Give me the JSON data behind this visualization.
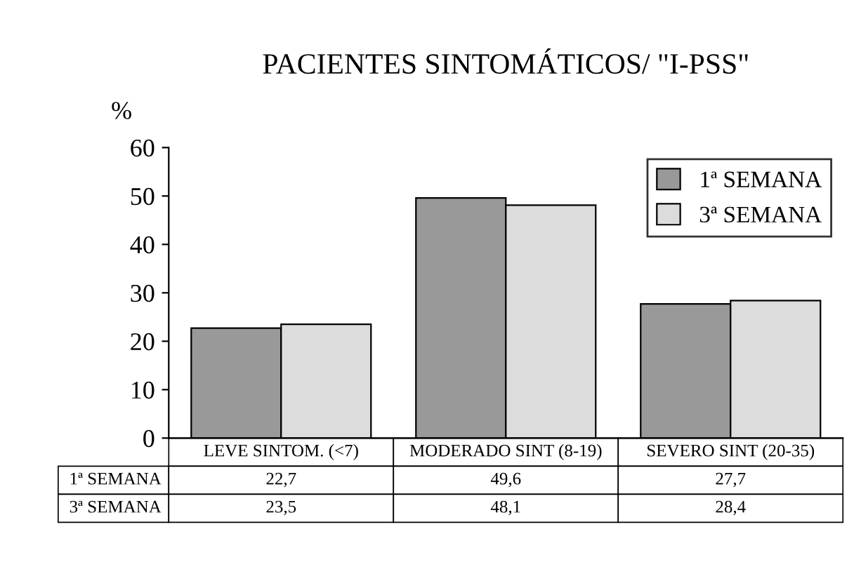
{
  "chart_data": {
    "type": "bar",
    "title": "PACIENTES SINTOMÁTICOS/ \"I-PSS\"",
    "ylabel": "%",
    "categories": [
      "LEVE SINTOM. (<7)",
      "MODERADO SINT (8-19)",
      "SEVERO SINT (20-35)"
    ],
    "series": [
      {
        "name": "1ª SEMANA",
        "color": "#999999",
        "values": [
          22.7,
          49.6,
          27.7
        ],
        "value_labels": [
          "22,7",
          "49,6",
          "27,7"
        ]
      },
      {
        "name": "3ª SEMANA",
        "color": "#dcdcdc",
        "values": [
          23.5,
          48.1,
          28.4
        ],
        "value_labels": [
          "23,5",
          "48,1",
          "28,4"
        ]
      }
    ],
    "ylim": [
      0,
      60
    ],
    "yticks": [
      0,
      10,
      20,
      30,
      40,
      50,
      60
    ],
    "grid": false,
    "legend": "top right"
  }
}
